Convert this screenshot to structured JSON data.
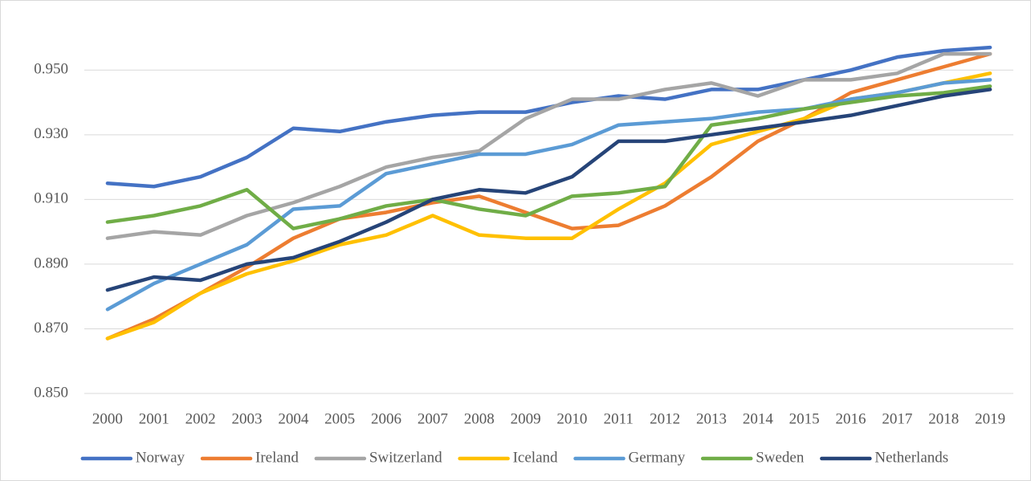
{
  "chart_data": {
    "type": "line",
    "categories": [
      "2000",
      "2001",
      "2002",
      "2003",
      "2004",
      "2005",
      "2006",
      "2007",
      "2008",
      "2009",
      "2010",
      "2011",
      "2012",
      "2013",
      "2014",
      "2015",
      "2016",
      "2017",
      "2018",
      "2019"
    ],
    "series": [
      {
        "name": "Norway",
        "color": "#4472c4",
        "values": [
          0.915,
          0.914,
          0.917,
          0.923,
          0.932,
          0.931,
          0.934,
          0.936,
          0.937,
          0.937,
          0.94,
          0.942,
          0.941,
          0.944,
          0.944,
          0.947,
          0.95,
          0.954,
          0.956,
          0.957
        ]
      },
      {
        "name": "Ireland",
        "color": "#ed7d31",
        "values": [
          0.867,
          0.873,
          0.881,
          0.889,
          0.898,
          0.904,
          0.906,
          0.909,
          0.911,
          0.906,
          0.901,
          0.902,
          0.908,
          0.917,
          0.928,
          0.935,
          0.943,
          0.947,
          0.951,
          0.955
        ]
      },
      {
        "name": "Switzerland",
        "color": "#a5a5a5",
        "values": [
          0.898,
          0.9,
          0.899,
          0.905,
          0.909,
          0.914,
          0.92,
          0.923,
          0.925,
          0.935,
          0.941,
          0.941,
          0.944,
          0.946,
          0.942,
          0.947,
          0.947,
          0.949,
          0.955,
          0.955
        ]
      },
      {
        "name": "Iceland",
        "color": "#ffc000",
        "values": [
          0.867,
          0.872,
          0.881,
          0.887,
          0.891,
          0.896,
          0.899,
          0.905,
          0.899,
          0.898,
          0.898,
          0.907,
          0.915,
          0.927,
          0.931,
          0.935,
          0.941,
          0.943,
          0.946,
          0.949
        ]
      },
      {
        "name": "Germany",
        "color": "#5b9bd5",
        "values": [
          0.876,
          0.884,
          0.89,
          0.896,
          0.907,
          0.908,
          0.918,
          0.921,
          0.924,
          0.924,
          0.927,
          0.933,
          0.934,
          0.935,
          0.937,
          0.938,
          0.941,
          0.943,
          0.946,
          0.947
        ]
      },
      {
        "name": "Sweden",
        "color": "#70ad47",
        "values": [
          0.903,
          0.905,
          0.908,
          0.913,
          0.901,
          0.904,
          0.908,
          0.91,
          0.907,
          0.905,
          0.911,
          0.912,
          0.914,
          0.933,
          0.935,
          0.938,
          0.94,
          0.942,
          0.943,
          0.945
        ]
      },
      {
        "name": "Netherlands",
        "color": "#264478",
        "values": [
          0.882,
          0.886,
          0.885,
          0.89,
          0.892,
          0.897,
          0.903,
          0.91,
          0.913,
          0.912,
          0.917,
          0.928,
          0.928,
          0.93,
          0.932,
          0.934,
          0.936,
          0.939,
          0.942,
          0.944
        ]
      }
    ],
    "ylim": [
      0.85,
      0.96
    ],
    "yticks": [
      {
        "value": 0.85,
        "label": "0.850"
      },
      {
        "value": 0.87,
        "label": "0.870"
      },
      {
        "value": 0.89,
        "label": "0.890"
      },
      {
        "value": 0.91,
        "label": "0.910"
      },
      {
        "value": 0.93,
        "label": "0.930"
      },
      {
        "value": 0.95,
        "label": "0.950"
      }
    ],
    "grid": true,
    "legend": "bottom"
  }
}
